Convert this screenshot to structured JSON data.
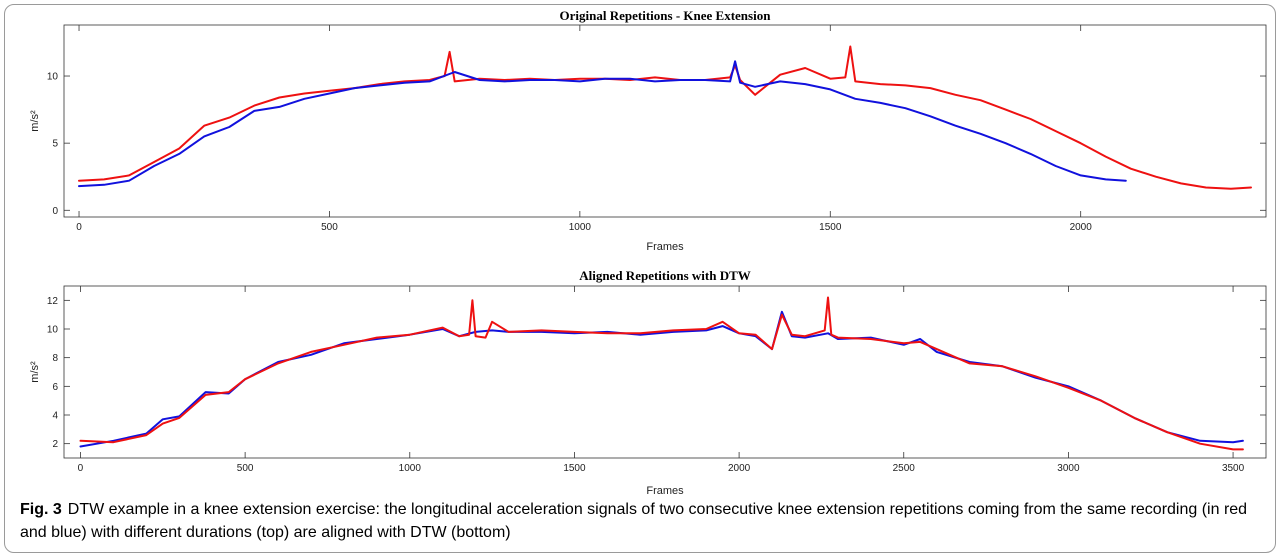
{
  "caption": {
    "figure_number": "Fig. 3",
    "text": "DTW example in a knee extension exercise: the longitudinal acceleration signals of two consecutive knee extension repetitions coming from the same recording (in red and blue) with different durations (top) are aligned with DTW (bottom)"
  },
  "colors": {
    "red": "#ee1111",
    "blue": "#1111dd",
    "axis": "#333333"
  },
  "chart_data": [
    {
      "type": "line",
      "title": "Original Repetitions - Knee Extension",
      "xlabel": "Frames",
      "ylabel": "m/s²",
      "xlim": [
        -30,
        2370
      ],
      "ylim": [
        -0.5,
        13.8
      ],
      "xticks": [
        0,
        500,
        1000,
        1500,
        2000
      ],
      "yticks": [
        0,
        5,
        10
      ],
      "grid": false,
      "series": [
        {
          "color": "red",
          "x": [
            0,
            50,
            100,
            150,
            200,
            250,
            300,
            350,
            400,
            450,
            500,
            550,
            600,
            650,
            700,
            730,
            740,
            750,
            800,
            850,
            900,
            950,
            1000,
            1050,
            1100,
            1150,
            1200,
            1250,
            1300,
            1310,
            1320,
            1350,
            1380,
            1400,
            1450,
            1500,
            1530,
            1540,
            1550,
            1600,
            1650,
            1700,
            1750,
            1800,
            1850,
            1900,
            1950,
            2000,
            2050,
            2100,
            2150,
            2200,
            2250,
            2300,
            2340
          ],
          "y": [
            2.2,
            2.3,
            2.6,
            3.6,
            4.6,
            6.3,
            6.9,
            7.8,
            8.4,
            8.7,
            8.9,
            9.1,
            9.4,
            9.6,
            9.7,
            10.0,
            11.8,
            9.6,
            9.8,
            9.7,
            9.8,
            9.7,
            9.8,
            9.8,
            9.7,
            9.9,
            9.7,
            9.7,
            9.9,
            10.8,
            9.7,
            8.6,
            9.5,
            10.1,
            10.6,
            9.8,
            9.9,
            12.2,
            9.6,
            9.4,
            9.3,
            9.1,
            8.6,
            8.2,
            7.5,
            6.8,
            5.9,
            5.0,
            4.0,
            3.1,
            2.5,
            2.0,
            1.7,
            1.6,
            1.7
          ]
        },
        {
          "color": "blue",
          "x": [
            0,
            50,
            100,
            150,
            200,
            250,
            300,
            350,
            400,
            450,
            500,
            550,
            600,
            650,
            700,
            750,
            800,
            850,
            900,
            950,
            1000,
            1050,
            1100,
            1150,
            1200,
            1250,
            1300,
            1310,
            1320,
            1350,
            1400,
            1450,
            1500,
            1550,
            1600,
            1650,
            1700,
            1750,
            1800,
            1850,
            1900,
            1950,
            2000,
            2050,
            2090
          ],
          "y": [
            1.8,
            1.9,
            2.2,
            3.3,
            4.2,
            5.5,
            6.2,
            7.4,
            7.7,
            8.3,
            8.7,
            9.1,
            9.3,
            9.5,
            9.6,
            10.3,
            9.7,
            9.6,
            9.7,
            9.7,
            9.6,
            9.8,
            9.8,
            9.6,
            9.7,
            9.7,
            9.6,
            11.1,
            9.5,
            9.2,
            9.6,
            9.4,
            9.0,
            8.3,
            8.0,
            7.6,
            7.0,
            6.3,
            5.7,
            5.0,
            4.2,
            3.3,
            2.6,
            2.3,
            2.2
          ]
        }
      ]
    },
    {
      "type": "line",
      "title": "Aligned Repetitions with DTW",
      "xlabel": "Frames",
      "ylabel": "m/s²",
      "xlim": [
        -50,
        3600
      ],
      "ylim": [
        1,
        13
      ],
      "xticks": [
        0,
        500,
        1000,
        1500,
        2000,
        2500,
        3000,
        3500
      ],
      "yticks": [
        2,
        4,
        6,
        8,
        10,
        12
      ],
      "grid": false,
      "series": [
        {
          "color": "blue",
          "x": [
            0,
            100,
            200,
            250,
            300,
            380,
            450,
            500,
            600,
            700,
            800,
            900,
            1000,
            1100,
            1150,
            1200,
            1250,
            1300,
            1400,
            1500,
            1600,
            1700,
            1800,
            1900,
            1950,
            2000,
            2050,
            2100,
            2130,
            2160,
            2200,
            2270,
            2300,
            2400,
            2500,
            2550,
            2600,
            2700,
            2800,
            2900,
            3000,
            3100,
            3200,
            3300,
            3400,
            3500,
            3530
          ],
          "y": [
            1.8,
            2.2,
            2.7,
            3.7,
            3.9,
            5.6,
            5.5,
            6.5,
            7.7,
            8.2,
            9.0,
            9.3,
            9.6,
            10.0,
            9.5,
            9.8,
            9.9,
            9.8,
            9.8,
            9.7,
            9.8,
            9.6,
            9.8,
            9.9,
            10.2,
            9.7,
            9.5,
            8.6,
            11.2,
            9.5,
            9.4,
            9.7,
            9.3,
            9.4,
            8.9,
            9.3,
            8.4,
            7.7,
            7.4,
            6.6,
            6.0,
            5.0,
            3.8,
            2.8,
            2.2,
            2.1,
            2.2
          ]
        },
        {
          "color": "red",
          "x": [
            0,
            100,
            200,
            250,
            300,
            380,
            450,
            500,
            600,
            700,
            800,
            900,
            1000,
            1100,
            1150,
            1180,
            1190,
            1200,
            1230,
            1250,
            1300,
            1400,
            1500,
            1600,
            1700,
            1800,
            1900,
            1950,
            2000,
            2050,
            2100,
            2130,
            2160,
            2200,
            2260,
            2270,
            2280,
            2300,
            2400,
            2500,
            2550,
            2600,
            2700,
            2800,
            2900,
            3000,
            3100,
            3200,
            3300,
            3400,
            3500,
            3530
          ],
          "y": [
            2.2,
            2.1,
            2.6,
            3.4,
            3.8,
            5.4,
            5.6,
            6.5,
            7.6,
            8.4,
            8.9,
            9.4,
            9.6,
            10.1,
            9.5,
            9.6,
            12.0,
            9.5,
            9.4,
            10.5,
            9.8,
            9.9,
            9.8,
            9.7,
            9.7,
            9.9,
            10.0,
            10.5,
            9.7,
            9.6,
            8.6,
            11.0,
            9.6,
            9.5,
            9.9,
            12.2,
            9.6,
            9.4,
            9.3,
            9.0,
            9.1,
            8.6,
            7.6,
            7.4,
            6.7,
            5.9,
            5.0,
            3.8,
            2.8,
            2.0,
            1.6,
            1.6
          ]
        }
      ]
    }
  ]
}
